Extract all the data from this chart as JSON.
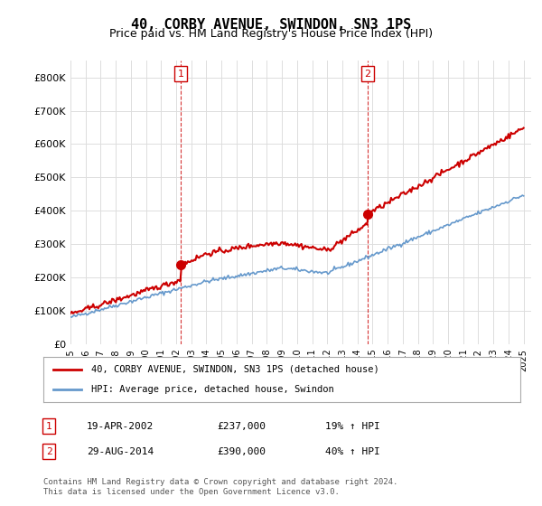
{
  "title": "40, CORBY AVENUE, SWINDON, SN3 1PS",
  "subtitle": "Price paid vs. HM Land Registry's House Price Index (HPI)",
  "title_fontsize": 11,
  "subtitle_fontsize": 9,
  "ylabel_ticks": [
    "£0",
    "£100K",
    "£200K",
    "£300K",
    "£400K",
    "£500K",
    "£600K",
    "£700K",
    "£800K"
  ],
  "ytick_values": [
    0,
    100000,
    200000,
    300000,
    400000,
    500000,
    600000,
    700000,
    800000
  ],
  "ylim": [
    0,
    850000
  ],
  "xlim_start": 1995.0,
  "xlim_end": 2025.5,
  "legend_line1": "40, CORBY AVENUE, SWINDON, SN3 1PS (detached house)",
  "legend_line2": "HPI: Average price, detached house, Swindon",
  "sale1_x": 2002.3,
  "sale1_y": 237000,
  "sale1_label": "1",
  "sale2_x": 2014.66,
  "sale2_y": 390000,
  "sale2_label": "2",
  "table_row1": [
    "1",
    "19-APR-2002",
    "£237,000",
    "19% ↑ HPI"
  ],
  "table_row2": [
    "2",
    "29-AUG-2014",
    "£390,000",
    "40% ↑ HPI"
  ],
  "footer": "Contains HM Land Registry data © Crown copyright and database right 2024.\nThis data is licensed under the Open Government Licence v3.0.",
  "line_color_red": "#cc0000",
  "line_color_blue": "#6699cc",
  "marker_color_red": "#cc0000",
  "vline_color": "#cc0000",
  "background_color": "#ffffff",
  "grid_color": "#dddddd"
}
